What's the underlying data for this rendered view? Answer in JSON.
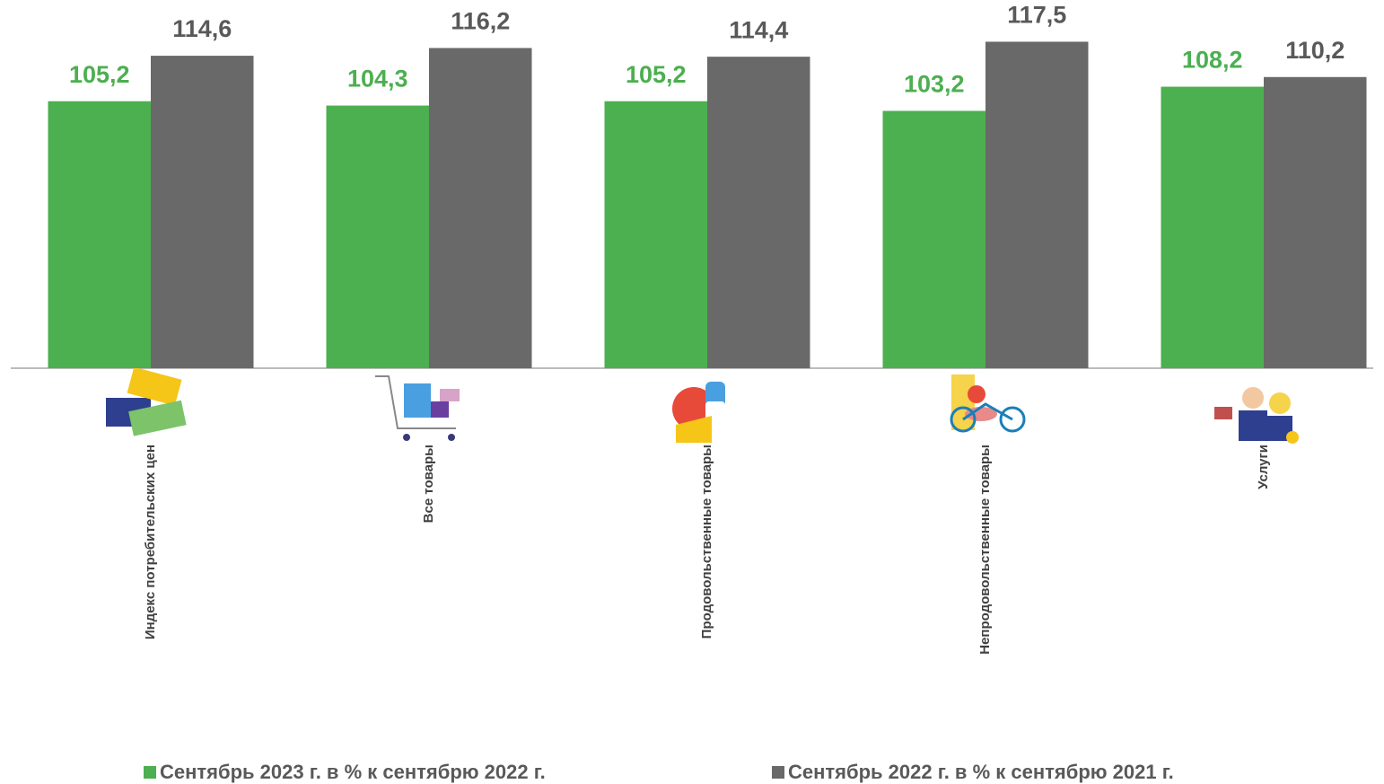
{
  "chart_data": {
    "type": "bar",
    "categories": [
      "Индекс потребительских цен",
      "Все товары",
      "Продовольственные товары",
      "Непродовольственные товары",
      "Услуги"
    ],
    "series": [
      {
        "name": "Сентябрь 2023 г. в % к сентябрю 2022 г.",
        "color": "#4caf50",
        "label_color": "#4caf50",
        "values": [
          105.2,
          104.3,
          105.2,
          103.2,
          108.2
        ],
        "value_labels": [
          "105,2",
          "104,3",
          "105,2",
          "103,2",
          "108,2"
        ]
      },
      {
        "name": "Сентябрь 2022 г. в % к сентябрю  2021 г.",
        "color": "#696969",
        "label_color": "#595959",
        "values": [
          114.6,
          116.2,
          114.4,
          117.5,
          110.2
        ],
        "value_labels": [
          "114,6",
          "116,2",
          "114,4",
          "117,5",
          "110,2"
        ]
      }
    ],
    "ylim": [
      50,
      120
    ],
    "legend": "bottom"
  }
}
